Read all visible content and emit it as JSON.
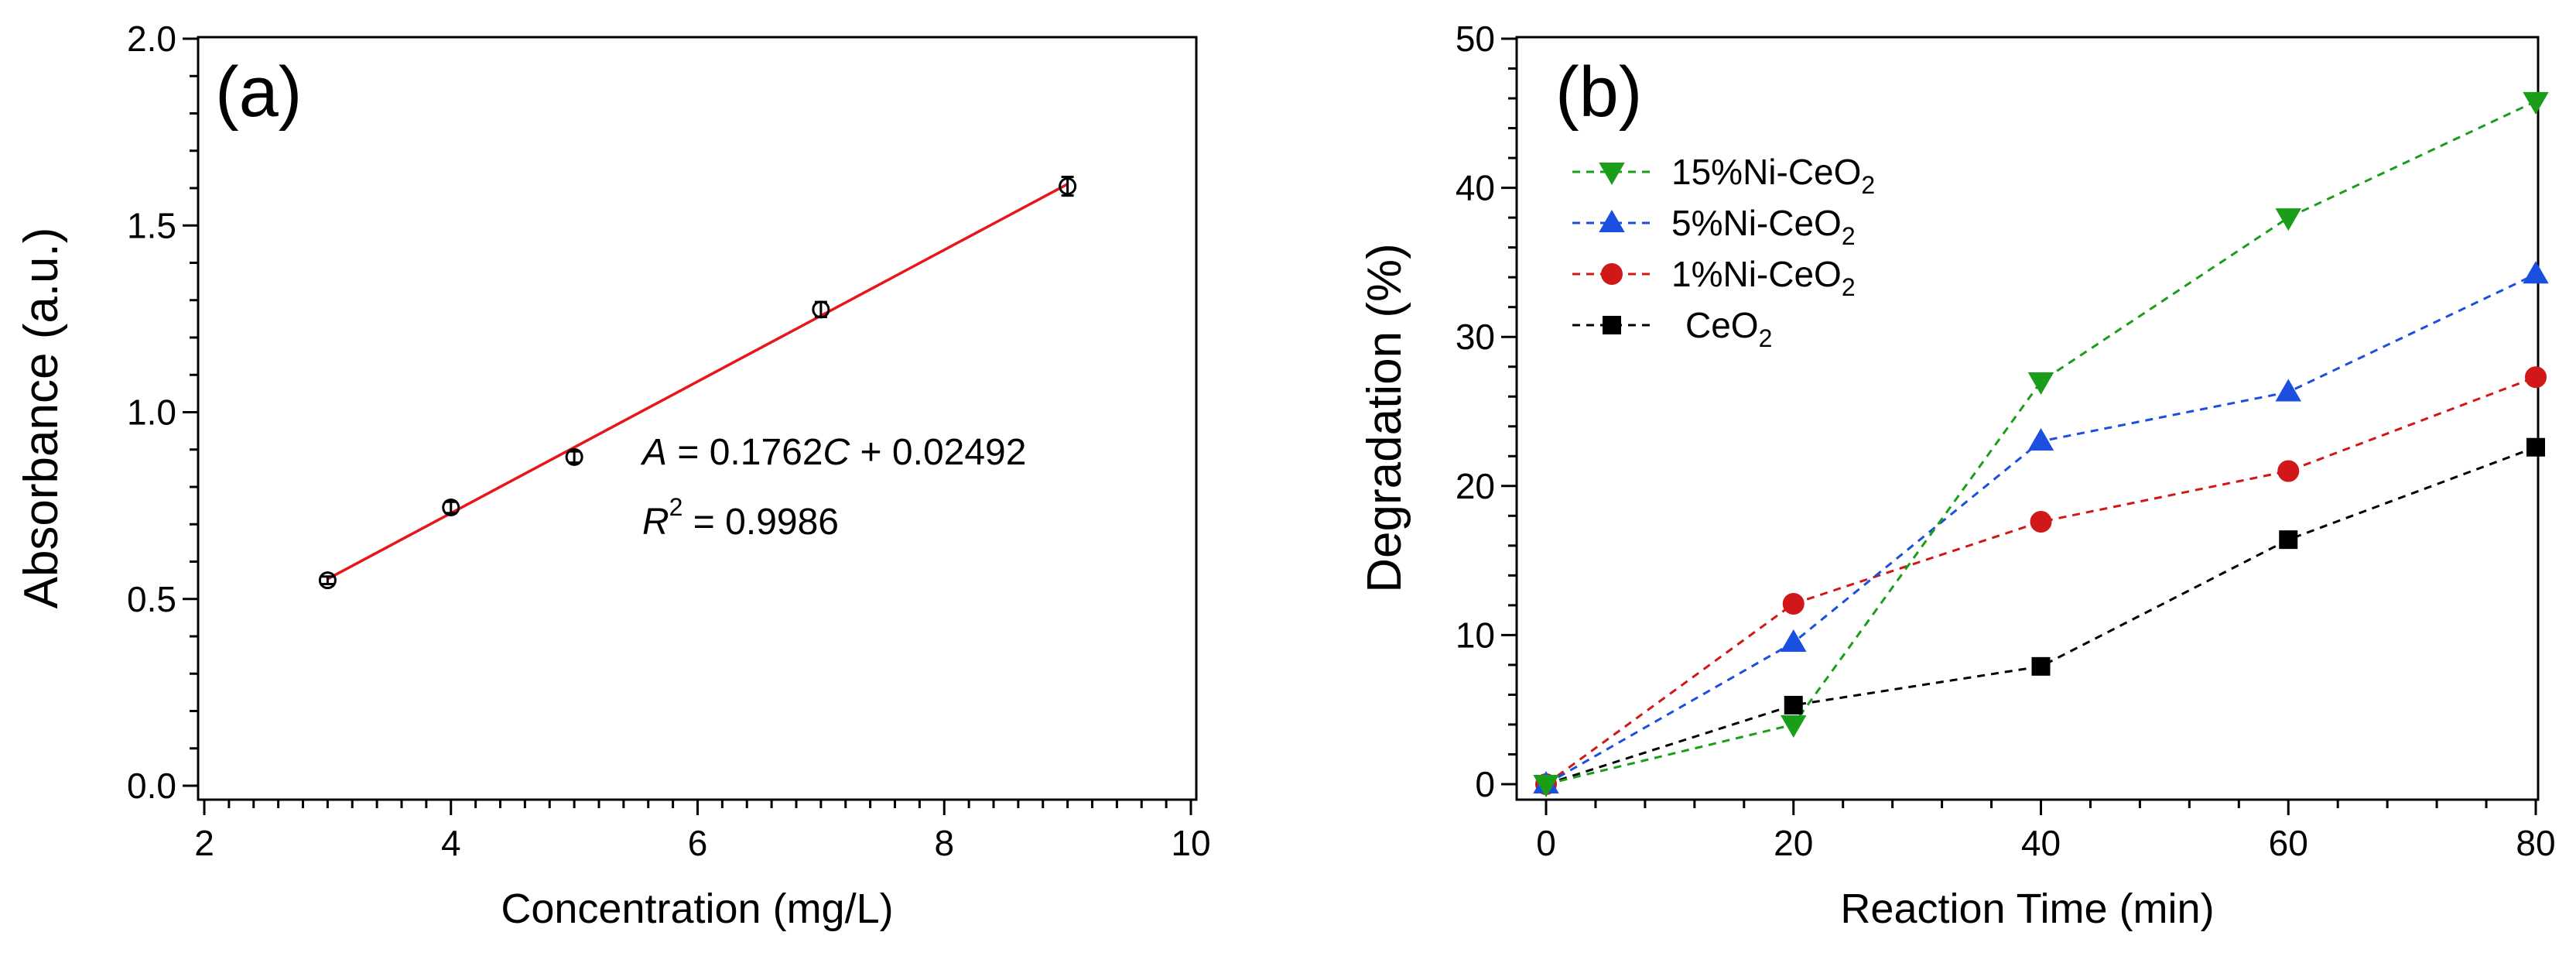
{
  "chart_data": [
    {
      "panel_label": "(a)",
      "type": "scatter",
      "xlabel": "Concentration (mg/L)",
      "ylabel": "Absorbance (a.u.)",
      "xlim": [
        2,
        10
      ],
      "ylim": [
        0,
        2.0
      ],
      "xticks": [
        "2",
        "4",
        "6",
        "8",
        "10"
      ],
      "yticks": [
        "0.0",
        "0.5",
        "1.0",
        "1.5",
        "2.0"
      ],
      "grid": false,
      "series": [
        {
          "marker": "open-circle",
          "color": "#000000",
          "x": [
            3,
            4,
            5,
            7,
            9
          ],
          "y": [
            0.55,
            0.745,
            0.88,
            1.275,
            1.605
          ],
          "error": [
            0.01,
            0.015,
            0.015,
            0.02,
            0.025
          ]
        }
      ],
      "fit": {
        "slope": 0.1762,
        "intercept": 0.02492,
        "x_range": [
          3,
          9
        ],
        "color": "#e8161b"
      },
      "annotation": {
        "eq_var": "A",
        "eq_mid": " = 0.1762",
        "eq_var2": "C",
        "eq_end": " + 0.02492",
        "r_var": "R",
        "r_sup": "2",
        "r_end": " = 0.9986"
      }
    },
    {
      "panel_label": "(b)",
      "type": "line",
      "xlabel": "Reaction Time (min)",
      "ylabel": "Degradation (%)",
      "xlim": [
        0,
        80
      ],
      "ylim": [
        0,
        50
      ],
      "xticks": [
        "0",
        "20",
        "40",
        "60",
        "80"
      ],
      "yticks": [
        "0",
        "10",
        "20",
        "30",
        "40",
        "50"
      ],
      "grid": false,
      "legend_position": "top-left",
      "x": [
        0,
        20,
        40,
        60,
        80
      ],
      "series": [
        {
          "name": "15%Ni-CeO",
          "name_sub": "2",
          "marker": "triangle-down",
          "color": "#1a9e1a",
          "values": [
            0,
            4.0,
            27.0,
            38.0,
            45.8
          ]
        },
        {
          "name": "5%Ni-CeO",
          "name_sub": "2",
          "marker": "triangle-up",
          "color": "#1a4fe0",
          "values": [
            0,
            9.5,
            23.0,
            26.3,
            34.2
          ]
        },
        {
          "name": "1%Ni-CeO",
          "name_sub": "2",
          "marker": "circle",
          "color": "#d01818",
          "values": [
            0,
            12.1,
            17.6,
            21.0,
            27.3
          ]
        },
        {
          "name": "CeO",
          "name_sub": "2",
          "marker": "square",
          "color": "#000000",
          "values": [
            0,
            5.3,
            7.9,
            16.4,
            22.6
          ]
        }
      ]
    }
  ]
}
